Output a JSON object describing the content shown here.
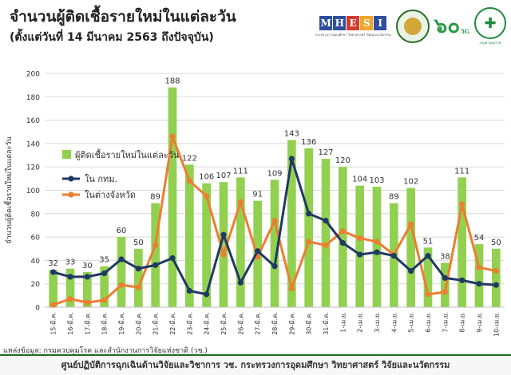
{
  "header": {
    "title": "จำนวนผู้ติดเชื้อรายใหม่ในแต่ละวัน",
    "subtitle": "(ตั้งแต่วันที่ 14 มีนาคม 2563 ถึงปัจจุบัน)"
  },
  "logos": {
    "mhesi_letters": [
      "M",
      "H",
      "E",
      "S",
      "I"
    ],
    "mhesi_colors": [
      "#2f4f9e",
      "#2f4f9e",
      "#d33b2f",
      "#f0a42b",
      "#2f4f9e"
    ],
    "mhesi_sub": "กระทรวงการอุดมศึกษา วิทยาศาสตร์ วิจัยและนวัตกรรม",
    "anniversary_text": "๖๐",
    "anniversary_suffix": "5G",
    "moph_sub": "กรมควบคุมโรค"
  },
  "footer": {
    "source": "แหล่งข้อมูล: กรมควบคุมโรค และสำนักงานการวิจัยแห่งชาติ (วช.)",
    "credit": "ศูนย์ปฏิบัติการฉุกเฉินด้านวิจัยและวิชาการ   วช.   กระทรวงการอุดมศึกษา วิทยาศาสตร์ วิจัยและนวัตกรรม"
  },
  "chart_data": {
    "type": "bar",
    "ylabel": "จำนวนผู้ติดเชื้อรายใหม่ในแต่ละวัน",
    "ylim": [
      0,
      200
    ],
    "yticks": [
      0,
      20,
      40,
      60,
      80,
      100,
      120,
      140,
      160,
      180,
      200
    ],
    "grid": true,
    "legend_position": "upper-left",
    "categories": [
      "15-มี.ค.",
      "16-มี.ค.",
      "17-มี.ค.",
      "18-มี.ค.",
      "19-มี.ค.",
      "20-มี.ค.",
      "21-มี.ค.",
      "22-มี.ค.",
      "23-มี.ค.",
      "24-มี.ค.",
      "25-มี.ค.",
      "26-มี.ค.",
      "27-มี.ค.",
      "28-มี.ค.",
      "29-มี.ค.",
      "30-มี.ค.",
      "31-มี.ค.",
      "1-เม.ย.",
      "2-เม.ย.",
      "3-เม.ย.",
      "4-เม.ย.",
      "5-เม.ย.",
      "6-เม.ย.",
      "7-เม.ย.",
      "8-เม.ย.",
      "9-เม.ย.",
      "10-เม.ย."
    ],
    "series": [
      {
        "name": "ผู้ติดเชื้อรายใหม่ในแต่ละวัน",
        "kind": "bar",
        "color": "#92d050",
        "values": [
          32,
          33,
          30,
          35,
          60,
          50,
          89,
          188,
          122,
          106,
          107,
          111,
          91,
          109,
          143,
          136,
          127,
          120,
          104,
          103,
          89,
          102,
          51,
          38,
          111,
          54,
          50
        ]
      },
      {
        "name": "ใน กทม.",
        "kind": "line",
        "color": "#1f3864",
        "values": [
          30,
          26,
          26,
          29,
          41,
          33,
          36,
          42,
          14,
          11,
          62,
          21,
          48,
          35,
          127,
          80,
          74,
          55,
          45,
          47,
          44,
          31,
          44,
          25,
          23,
          20,
          19
        ]
      },
      {
        "name": "ในต่างจังหวัด",
        "kind": "line",
        "color": "#ed7d31",
        "values": [
          2,
          7,
          4,
          6,
          19,
          17,
          53,
          146,
          108,
          95,
          45,
          90,
          43,
          74,
          16,
          56,
          53,
          65,
          59,
          56,
          45,
          71,
          11,
          13,
          88,
          34,
          31
        ]
      }
    ],
    "bar_labels": [
      "32",
      "33",
      "30",
      "35",
      "60",
      "50",
      "89",
      "188",
      "122",
      "106",
      "107",
      "111",
      "91",
      "109",
      "143",
      "136",
      "127",
      "120",
      "104",
      "103",
      "89",
      "102",
      "51",
      "38",
      "111",
      "54",
      "50"
    ]
  }
}
